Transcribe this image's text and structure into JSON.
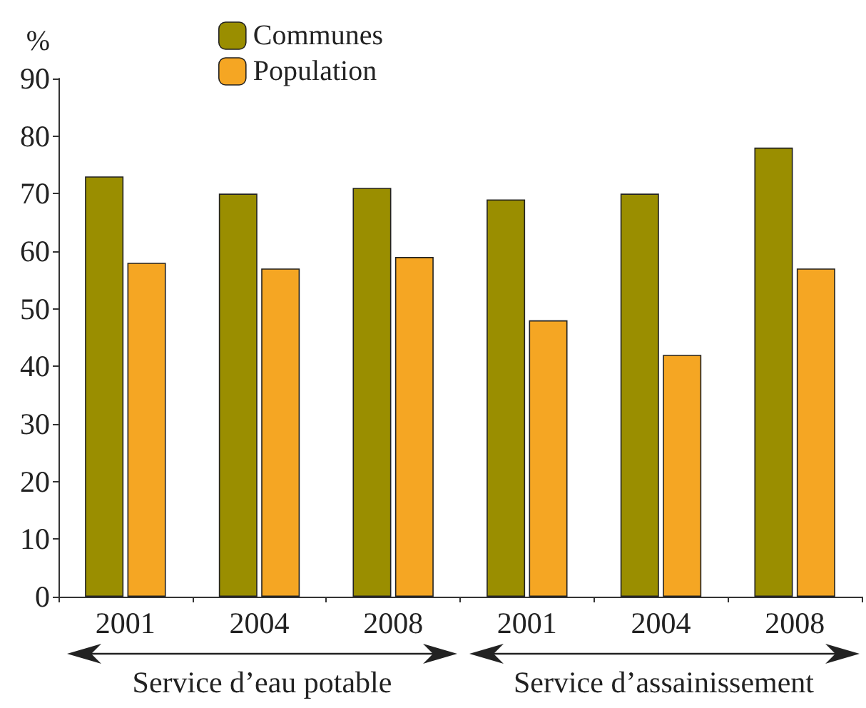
{
  "chart_data": {
    "type": "bar",
    "ylabel": "%",
    "categories": [
      "2001",
      "2004",
      "2008",
      "2001",
      "2004",
      "2008"
    ],
    "series": [
      {
        "name": "Communes",
        "color": "#9a8e00",
        "values": [
          73,
          70,
          71,
          69,
          70,
          78
        ]
      },
      {
        "name": "Population",
        "color": "#f5a623",
        "values": [
          58,
          57,
          59,
          48,
          42,
          57
        ]
      }
    ],
    "ylim": [
      0,
      90
    ],
    "yticks": [
      0,
      10,
      20,
      30,
      40,
      50,
      60,
      70,
      80,
      90
    ],
    "annotations": [
      "Service d’eau potable",
      "Service d’assainissement"
    ],
    "grid": false,
    "legend": "top"
  }
}
